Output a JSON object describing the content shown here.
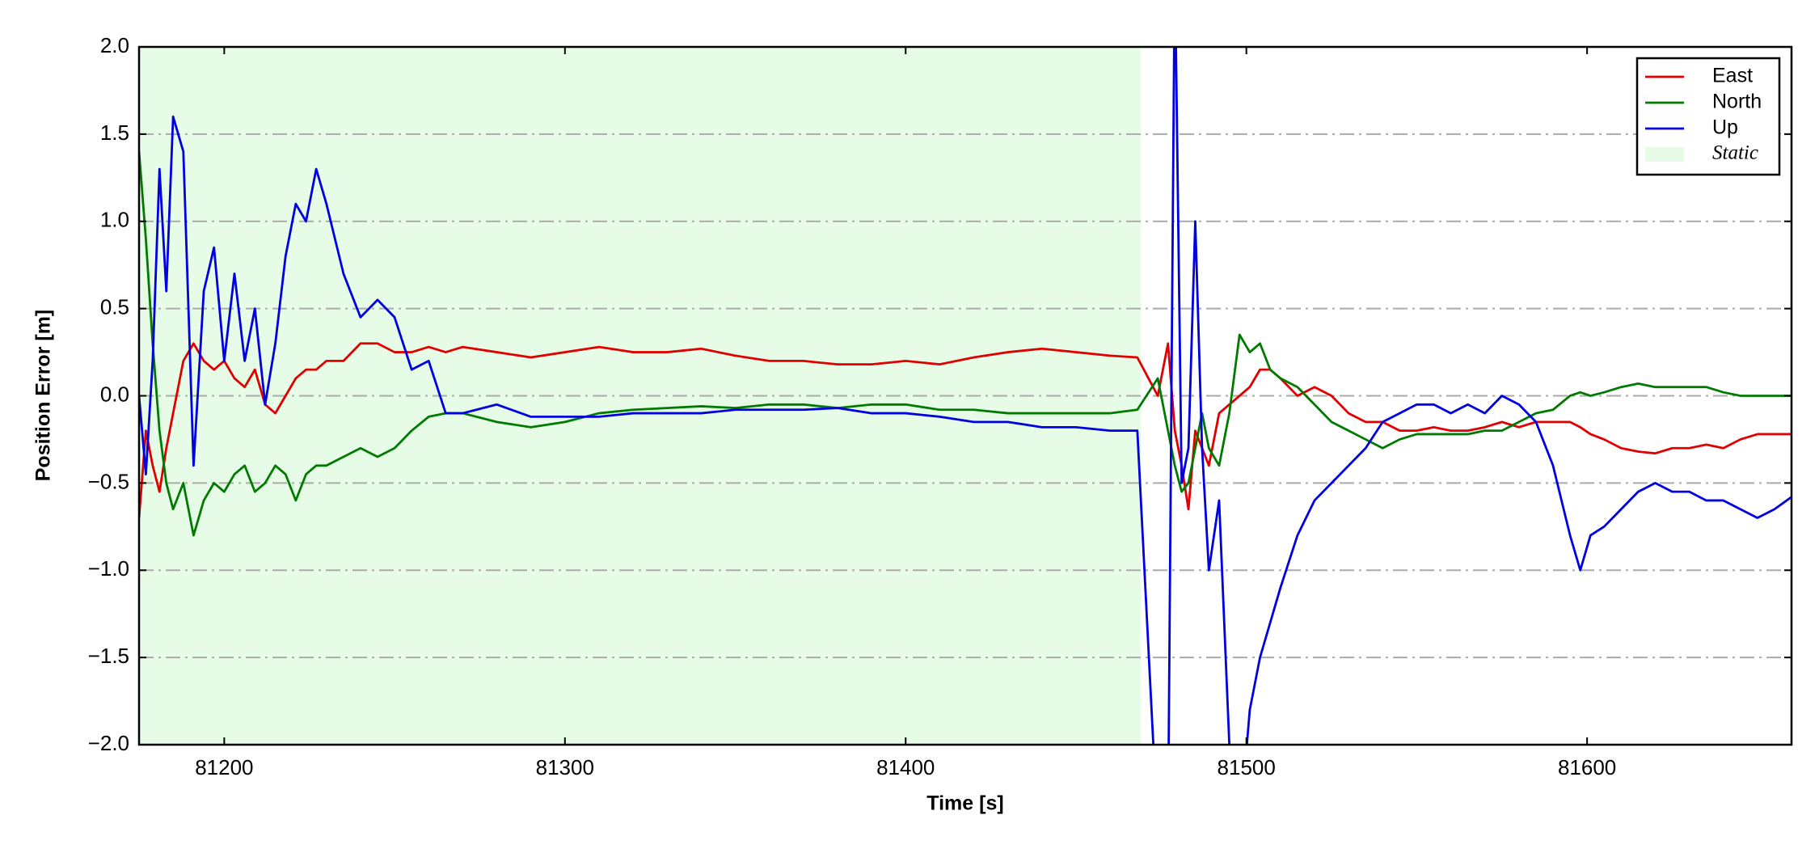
{
  "chart_data": {
    "type": "line",
    "x_label": "Time [s]",
    "y_label": "Position Error [m]",
    "xlim": [
      81175,
      81660
    ],
    "ylim": [
      -2,
      2
    ],
    "xticks": [
      81200,
      81300,
      81400,
      81500,
      81600
    ],
    "yticks": [
      {
        "value": -2,
        "label": "−2.0"
      },
      {
        "value": -1.5,
        "label": "−1.5"
      },
      {
        "value": -1,
        "label": "−1.0"
      },
      {
        "value": -0.5,
        "label": "−0.5"
      },
      {
        "value": 0,
        "label": "0.0"
      },
      {
        "value": 0.5,
        "label": "0.5"
      },
      {
        "value": 1,
        "label": "1.0"
      },
      {
        "value": 1.5,
        "label": "1.5"
      },
      {
        "value": 2,
        "label": "2.0"
      }
    ],
    "grid": true,
    "legend": "upper right",
    "shaded_region": {
      "name": "Static",
      "color": "#e6fce6",
      "x": [
        81175,
        81469
      ]
    },
    "x": [
      81175,
      81177,
      81179,
      81181,
      81183,
      81185,
      81188,
      81191,
      81194,
      81197,
      81200,
      81203,
      81206,
      81209,
      81212,
      81215,
      81218,
      81221,
      81224,
      81227,
      81230,
      81235,
      81240,
      81245,
      81250,
      81255,
      81260,
      81265,
      81270,
      81280,
      81290,
      81300,
      81310,
      81320,
      81330,
      81340,
      81350,
      81360,
      81370,
      81380,
      81390,
      81400,
      81410,
      81420,
      81430,
      81440,
      81450,
      81460,
      81468,
      81474,
      81477,
      81479,
      81481,
      81483,
      81485,
      81487,
      81489,
      81492,
      81495,
      81498,
      81501,
      81504,
      81507,
      81510,
      81515,
      81520,
      81525,
      81530,
      81535,
      81540,
      81545,
      81550,
      81555,
      81560,
      81565,
      81570,
      81575,
      81580,
      81585,
      81590,
      81595,
      81598,
      81601,
      81605,
      81610,
      81615,
      81620,
      81625,
      81630,
      81635,
      81640,
      81645,
      81650,
      81655,
      81660
    ],
    "series": [
      {
        "name": "East",
        "color": "#e00000",
        "values": [
          -0.7,
          -0.2,
          -0.4,
          -0.55,
          -0.3,
          -0.1,
          0.2,
          0.3,
          0.2,
          0.15,
          0.2,
          0.1,
          0.05,
          0.15,
          -0.05,
          -0.1,
          0,
          0.1,
          0.15,
          0.15,
          0.2,
          0.2,
          0.3,
          0.3,
          0.25,
          0.25,
          0.28,
          0.25,
          0.28,
          0.25,
          0.22,
          0.25,
          0.28,
          0.25,
          0.25,
          0.27,
          0.23,
          0.2,
          0.2,
          0.18,
          0.18,
          0.2,
          0.18,
          0.22,
          0.25,
          0.27,
          0.25,
          0.23,
          0.22,
          0,
          0.3,
          -0.2,
          -0.4,
          -0.65,
          -0.2,
          -0.3,
          -0.4,
          -0.1,
          -0.05,
          0,
          0.05,
          0.15,
          0.15,
          0.1,
          0,
          0.05,
          0,
          -0.1,
          -0.15,
          -0.15,
          -0.2,
          -0.2,
          -0.18,
          -0.2,
          -0.2,
          -0.18,
          -0.15,
          -0.18,
          -0.15,
          -0.15,
          -0.15,
          -0.18,
          -0.22,
          -0.25,
          -0.3,
          -0.32,
          -0.33,
          -0.3,
          -0.3,
          -0.28,
          -0.3,
          -0.25,
          -0.22,
          -0.22,
          -0.22
        ]
      },
      {
        "name": "North",
        "color": "#007a00",
        "values": [
          1.4,
          0.9,
          0.3,
          -0.2,
          -0.5,
          -0.65,
          -0.5,
          -0.8,
          -0.6,
          -0.5,
          -0.55,
          -0.45,
          -0.4,
          -0.55,
          -0.5,
          -0.4,
          -0.45,
          -0.6,
          -0.45,
          -0.4,
          -0.4,
          -0.35,
          -0.3,
          -0.35,
          -0.3,
          -0.2,
          -0.12,
          -0.1,
          -0.1,
          -0.15,
          -0.18,
          -0.15,
          -0.1,
          -0.08,
          -0.07,
          -0.06,
          -0.07,
          -0.05,
          -0.05,
          -0.07,
          -0.05,
          -0.05,
          -0.08,
          -0.08,
          -0.1,
          -0.1,
          -0.1,
          -0.1,
          -0.08,
          0.1,
          -0.2,
          -0.4,
          -0.55,
          -0.5,
          -0.3,
          -0.1,
          -0.3,
          -0.4,
          -0.1,
          0.35,
          0.25,
          0.3,
          0.15,
          0.1,
          0.05,
          -0.05,
          -0.15,
          -0.2,
          -0.25,
          -0.3,
          -0.25,
          -0.22,
          -0.22,
          -0.22,
          -0.22,
          -0.2,
          -0.2,
          -0.15,
          -0.1,
          -0.08,
          0,
          0.02,
          0,
          0.02,
          0.05,
          0.07,
          0.05,
          0.05,
          0.05,
          0.05,
          0.02,
          0,
          0,
          0,
          0
        ]
      },
      {
        "name": "Up",
        "color": "#0000e0",
        "values": [
          0,
          -0.45,
          0.2,
          1.3,
          0.6,
          1.6,
          1.4,
          -0.4,
          0.6,
          0.85,
          0.2,
          0.7,
          0.2,
          0.5,
          -0.05,
          0.3,
          0.8,
          1.1,
          1,
          1.3,
          1.1,
          0.7,
          0.45,
          0.55,
          0.45,
          0.15,
          0.2,
          -0.1,
          -0.1,
          -0.05,
          -0.12,
          -0.12,
          -0.12,
          -0.1,
          -0.1,
          -0.1,
          -0.08,
          -0.08,
          -0.08,
          -0.07,
          -0.1,
          -0.1,
          -0.12,
          -0.15,
          -0.15,
          -0.18,
          -0.18,
          -0.2,
          -0.2,
          -2.5,
          -2.5,
          2.5,
          -0.5,
          -0.3,
          1,
          -0.3,
          -1,
          -0.6,
          -2,
          -2.5,
          -1.8,
          -1.5,
          -1.3,
          -1.1,
          -0.8,
          -0.6,
          -0.5,
          -0.4,
          -0.3,
          -0.15,
          -0.1,
          -0.05,
          -0.05,
          -0.1,
          -0.05,
          -0.1,
          0,
          -0.05,
          -0.15,
          -0.4,
          -0.8,
          -1,
          -0.8,
          -0.75,
          -0.65,
          -0.55,
          -0.5,
          -0.55,
          -0.55,
          -0.6,
          -0.6,
          -0.65,
          -0.7,
          -0.65,
          -0.58
        ]
      }
    ]
  }
}
